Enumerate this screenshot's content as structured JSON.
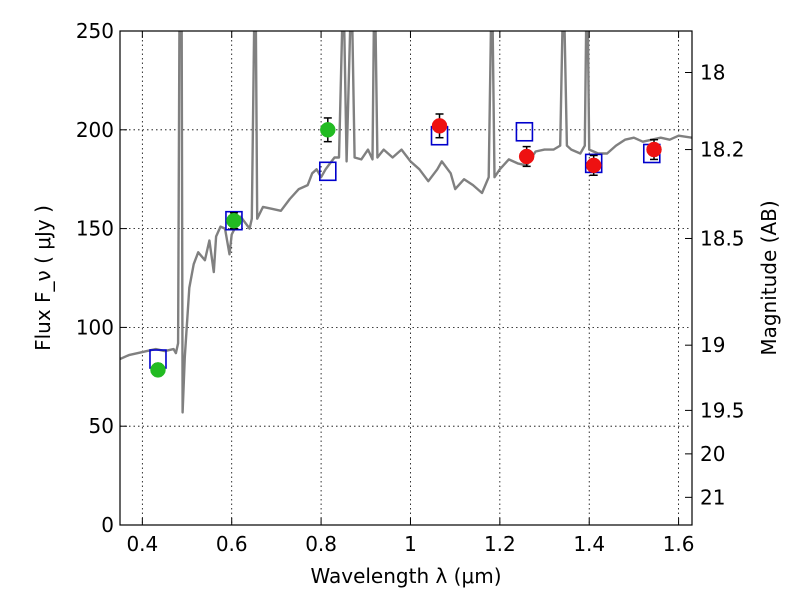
{
  "chart_data": {
    "type": "scatter",
    "xlabel": "Wavelength  λ (μm)",
    "ylabel": "Flux  F_ν  ( μJy )",
    "ylabel_right": "Magnitude (AB)",
    "xlim": [
      0.35,
      1.63
    ],
    "ylim": [
      0,
      250
    ],
    "grid": true,
    "x_ticks": [
      0.4,
      0.6,
      0.8,
      1.0,
      1.2,
      1.4,
      1.6
    ],
    "x_tick_labels": [
      "0.4",
      "0.6",
      "0.8",
      "1",
      "1.2",
      "1.4",
      "1.6"
    ],
    "y_ticks": [
      0,
      50,
      100,
      150,
      200,
      250
    ],
    "y_tick_labels": [
      "0",
      "50",
      "100",
      "150",
      "200",
      "250"
    ],
    "right_ticks": [
      {
        "label": "18",
        "flux": 229
      },
      {
        "label": "18.2",
        "flux": 190
      },
      {
        "label": "18.5",
        "flux": 145
      },
      {
        "label": "19",
        "flux": 91
      },
      {
        "label": "19.5",
        "flux": 58
      },
      {
        "label": "20",
        "flux": 36
      },
      {
        "label": "21",
        "flux": 14
      }
    ],
    "series": [
      {
        "kind": "line",
        "color": "#808080",
        "points": [
          [
            0.35,
            84
          ],
          [
            0.37,
            86
          ],
          [
            0.39,
            87
          ],
          [
            0.41,
            88
          ],
          [
            0.43,
            89
          ],
          [
            0.45,
            88
          ],
          [
            0.47,
            89
          ],
          [
            0.475,
            87
          ],
          [
            0.48,
            92
          ],
          [
            0.483,
            250
          ],
          [
            0.488,
            250
          ],
          [
            0.49,
            57
          ],
          [
            0.495,
            85
          ],
          [
            0.505,
            120
          ],
          [
            0.515,
            132
          ],
          [
            0.525,
            138
          ],
          [
            0.54,
            134
          ],
          [
            0.55,
            144
          ],
          [
            0.56,
            128
          ],
          [
            0.565,
            146
          ],
          [
            0.575,
            151
          ],
          [
            0.585,
            150
          ],
          [
            0.595,
            137
          ],
          [
            0.6,
            147
          ],
          [
            0.62,
            156
          ],
          [
            0.64,
            150
          ],
          [
            0.645,
            155
          ],
          [
            0.65,
            250
          ],
          [
            0.654,
            250
          ],
          [
            0.657,
            155
          ],
          [
            0.67,
            161
          ],
          [
            0.69,
            160
          ],
          [
            0.71,
            159
          ],
          [
            0.73,
            165
          ],
          [
            0.75,
            170
          ],
          [
            0.77,
            172
          ],
          [
            0.78,
            178
          ],
          [
            0.79,
            180
          ],
          [
            0.8,
            176
          ],
          [
            0.81,
            180
          ],
          [
            0.82,
            183
          ],
          [
            0.83,
            186
          ],
          [
            0.84,
            186
          ],
          [
            0.847,
            250
          ],
          [
            0.852,
            250
          ],
          [
            0.857,
            184
          ],
          [
            0.865,
            250
          ],
          [
            0.87,
            250
          ],
          [
            0.875,
            186
          ],
          [
            0.89,
            185
          ],
          [
            0.905,
            190
          ],
          [
            0.915,
            185
          ],
          [
            0.918,
            250
          ],
          [
            0.922,
            250
          ],
          [
            0.926,
            186
          ],
          [
            0.94,
            190
          ],
          [
            0.96,
            186
          ],
          [
            0.98,
            190
          ],
          [
            1.0,
            184
          ],
          [
            1.02,
            180
          ],
          [
            1.04,
            174
          ],
          [
            1.06,
            180
          ],
          [
            1.07,
            184
          ],
          [
            1.09,
            178
          ],
          [
            1.1,
            170
          ],
          [
            1.12,
            175
          ],
          [
            1.14,
            172
          ],
          [
            1.16,
            168
          ],
          [
            1.175,
            176
          ],
          [
            1.18,
            250
          ],
          [
            1.184,
            250
          ],
          [
            1.188,
            176
          ],
          [
            1.2,
            180
          ],
          [
            1.22,
            185
          ],
          [
            1.24,
            183
          ],
          [
            1.26,
            182
          ],
          [
            1.28,
            189
          ],
          [
            1.3,
            190
          ],
          [
            1.32,
            190
          ],
          [
            1.335,
            192
          ],
          [
            1.34,
            250
          ],
          [
            1.345,
            250
          ],
          [
            1.35,
            192
          ],
          [
            1.36,
            190
          ],
          [
            1.38,
            188
          ],
          [
            1.39,
            192
          ],
          [
            1.393,
            250
          ],
          [
            1.397,
            250
          ],
          [
            1.4,
            190
          ],
          [
            1.42,
            188
          ],
          [
            1.44,
            188
          ],
          [
            1.46,
            192
          ],
          [
            1.48,
            195
          ],
          [
            1.5,
            196
          ],
          [
            1.52,
            194
          ],
          [
            1.54,
            195
          ],
          [
            1.56,
            196
          ],
          [
            1.58,
            195
          ],
          [
            1.6,
            197
          ],
          [
            1.63,
            196
          ]
        ]
      },
      {
        "kind": "squares",
        "color": "#0000cc",
        "points": [
          [
            0.435,
            84
          ],
          [
            0.605,
            154
          ],
          [
            0.815,
            179
          ],
          [
            1.065,
            197
          ],
          [
            1.255,
            199
          ],
          [
            1.41,
            183
          ],
          [
            1.54,
            188
          ]
        ]
      },
      {
        "kind": "points-errorbars",
        "color": "#22bb22",
        "points": [
          {
            "x": 0.435,
            "y": 78.5,
            "err": 3
          },
          {
            "x": 0.605,
            "y": 154,
            "err": 4
          },
          {
            "x": 0.815,
            "y": 200,
            "err": 6
          }
        ]
      },
      {
        "kind": "points-errorbars",
        "color": "#ee1111",
        "points": [
          {
            "x": 1.065,
            "y": 202,
            "err": 6
          },
          {
            "x": 1.26,
            "y": 186.5,
            "err": 5
          },
          {
            "x": 1.41,
            "y": 182,
            "err": 5
          },
          {
            "x": 1.545,
            "y": 190,
            "err": 5
          }
        ]
      }
    ]
  }
}
